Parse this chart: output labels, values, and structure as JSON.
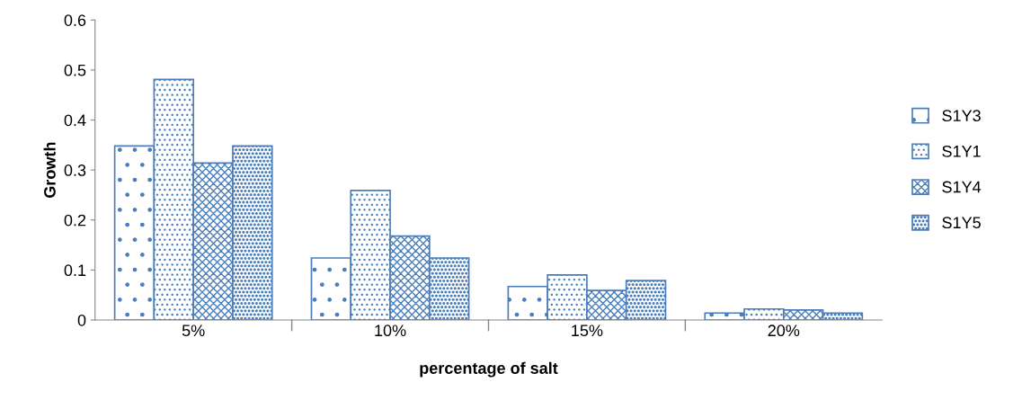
{
  "chart_data": {
    "type": "bar",
    "xlabel": "percentage of salt",
    "ylabel": "Growth",
    "categories": [
      "5%",
      "10%",
      "15%",
      "20%"
    ],
    "series": [
      {
        "name": "S1Y3",
        "color": "#4a7ebb",
        "values": [
          0.348,
          0.124,
          0.067,
          0.014
        ]
      },
      {
        "name": "S1Y1",
        "color": "#4a7ebb",
        "values": [
          0.481,
          0.259,
          0.09,
          0.022
        ]
      },
      {
        "name": "S1Y4",
        "color": "#4a7ebb",
        "values": [
          0.314,
          0.168,
          0.059,
          0.02
        ]
      },
      {
        "name": "S1Y5",
        "color": "#4a7ebb",
        "values": [
          0.348,
          0.124,
          0.079,
          0.014
        ]
      }
    ],
    "ylim": [
      0,
      0.6
    ],
    "yticks": [
      {
        "value": 0,
        "label": "0"
      },
      0.1,
      0.2,
      0.3,
      0.4,
      0.5,
      0.6
    ],
    "grid": false,
    "legend": "right"
  }
}
